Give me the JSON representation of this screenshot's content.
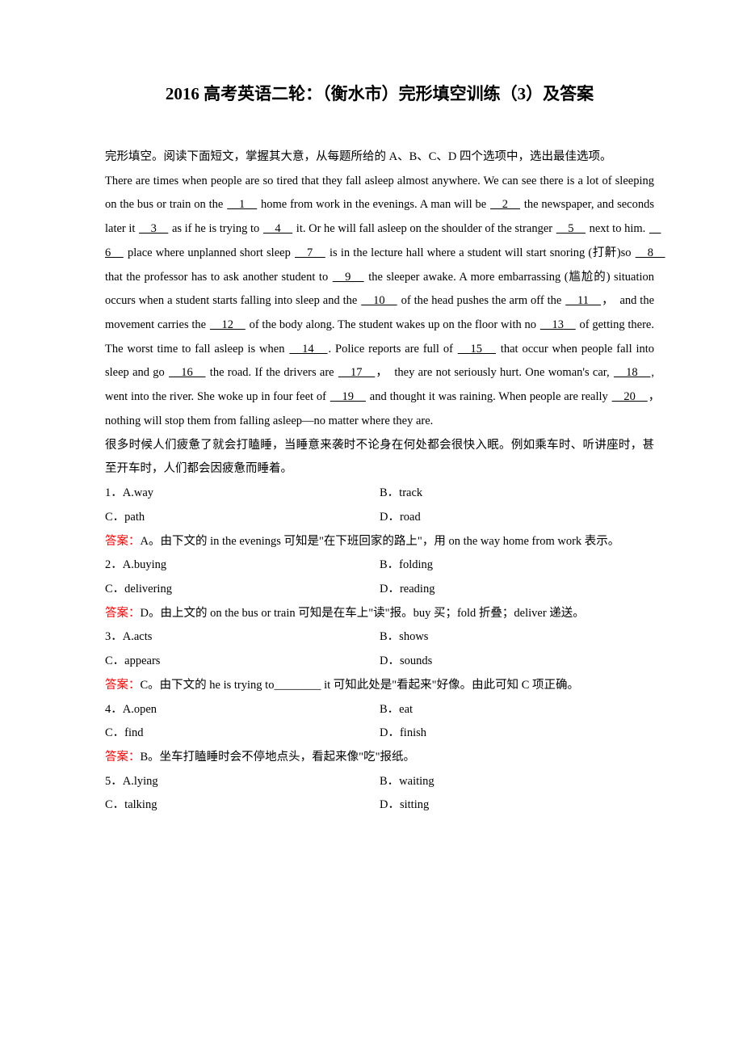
{
  "title": "2016 高考英语二轮：（衡水市）完形填空训练（3）及答案",
  "intro": "完形填空。阅读下面短文，掌握其大意，从每题所给的 A、B、C、D 四个选项中，选出最佳选项。",
  "passage": {
    "t1": "There are times when people are so tired that they fall asleep almost anywhere. We can see there is a lot of sleeping on the bus or train on the ",
    "b1": "　1　",
    "t2": " home from work in the evenings. A man will be ",
    "b2": "　2　",
    "t3": " the newspaper, and seconds later it ",
    "b3": "　3　",
    "t4": " as if he is trying to ",
    "b4": "　4　",
    "t5": " it. Or he will fall asleep on the shoulder of the stranger ",
    "b5": "　5　",
    "t6": " next to him. ",
    "b6": "　6　",
    "t7": " place where unplanned short sleep ",
    "b7": "　7　",
    "t8": " is in the lecture hall where a student will start snoring (打鼾)so ",
    "b8": "　8　",
    "t9": "that the professor has to ask another student to ",
    "b9": "　9　",
    "t10": " the sleeper awake. A more embarrassing (尴尬的) situation occurs when a student starts falling into sleep and the ",
    "b10": "　10　",
    "t11": " of the head pushes the arm off the ",
    "b11": "　11　",
    "t12": "，　and the movement carries the ",
    "b12": "　12　",
    "t13": " of the body along. The student wakes up on the floor with no ",
    "b13": "　13　",
    "t14": " of getting there. The worst time to fall asleep is when ",
    "b14": "　14　",
    "t15": ". Police reports are full of ",
    "b15": "　15　",
    "t16": " that occur when people fall into sleep and go ",
    "b16": "　16　",
    "t17": " the road. If the drivers are ",
    "b17": "　17　",
    "t18": "，　they are not seriously hurt. One woman's car, ",
    "b18": "　18　",
    "t19": ", went into the river. She woke up in four feet of ",
    "b19": "　19　",
    "t20": " and thought it was raining. When people are really ",
    "b20": "　20　",
    "t21": "，　nothing will stop them from falling asleep—no matter where they are."
  },
  "summary": "很多时候人们疲惫了就会打瞌睡，当睡意来袭时不论身在何处都会很快入眠。例如乘车时、听讲座时，甚至开车时，人们都会因疲惫而睡着。",
  "answerLabel": "答案：",
  "q1": {
    "num": "1．A.way",
    "b": "B．track",
    "c": "C．path",
    "d": "D．road",
    "ans": "A。由下文的 in the evenings 可知是\"在下班回家的路上\"，用 on the way home from work 表示。"
  },
  "q2": {
    "num": "2．A.buying",
    "b": "B．folding",
    "c": "C．delivering",
    "d": "D．reading",
    "ans": "D。由上文的 on the bus or train 可知是在车上\"读\"报。buy 买；fold 折叠；deliver 递送。"
  },
  "q3": {
    "num": "3．A.acts",
    "b": "B．shows",
    "c": "C．appears",
    "d": "D．sounds",
    "ans": "C。由下文的 he is trying to________ it  可知此处是\"看起来\"好像。由此可知 C 项正确。"
  },
  "q4": {
    "num": "4．A.open",
    "b": "B．eat",
    "c": "C．find",
    "d": "D．finish",
    "ans": "B。坐车打瞌睡时会不停地点头，看起来像\"吃\"报纸。"
  },
  "q5": {
    "num": "5．A.lying",
    "b": "B．waiting",
    "c": "C．talking",
    "d": "D．sitting"
  }
}
